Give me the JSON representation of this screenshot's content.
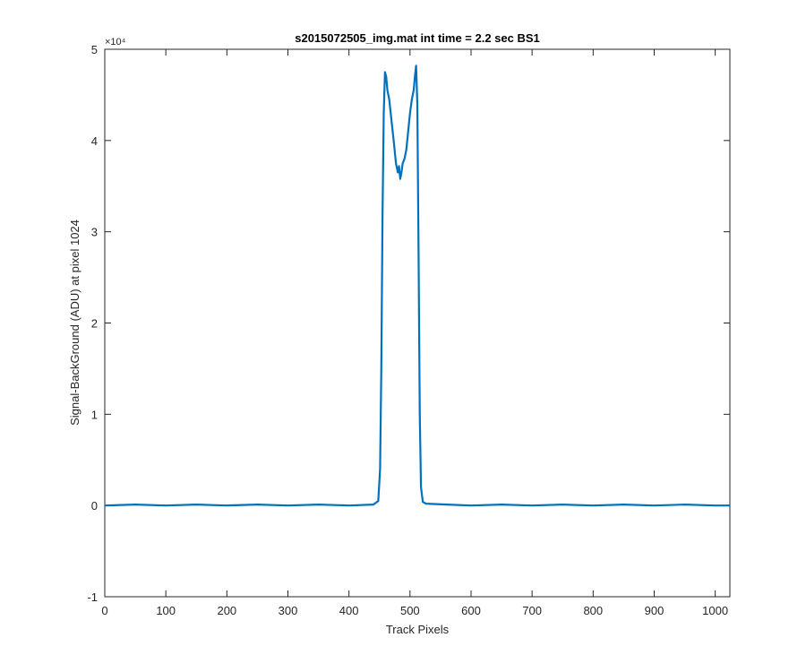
{
  "chart_data": {
    "type": "line",
    "title": "s2015072505_img.mat int time = 2.2 sec   BS1",
    "x_label": "Track Pixels",
    "y_label": "Signal-BackGround (ADU) at pixel 1024",
    "y_multiplier": "×10⁴",
    "xlim": [
      0,
      1024
    ],
    "xticks": [
      0,
      100,
      200,
      300,
      400,
      500,
      600,
      700,
      800,
      900,
      1000
    ],
    "ylim": [
      -1,
      5
    ],
    "yticks": [
      -1,
      0,
      1,
      2,
      3,
      4,
      5
    ],
    "series": [
      {
        "color": "#0072bd",
        "x": [
          0,
          50,
          100,
          150,
          200,
          250,
          300,
          350,
          400,
          440,
          448,
          451,
          453,
          455,
          457,
          459,
          461,
          463,
          466,
          470,
          474,
          477,
          480,
          482,
          484,
          486,
          488,
          491,
          494,
          497,
          500,
          503,
          506,
          508,
          510,
          512,
          514,
          516,
          518,
          521,
          526,
          560,
          600,
          650,
          700,
          750,
          800,
          850,
          900,
          950,
          1000,
          1024
        ],
        "values": [
          0.0,
          0.01,
          0.0,
          0.01,
          0.0,
          0.01,
          0.0,
          0.01,
          0.0,
          0.01,
          0.05,
          0.4,
          1.5,
          3.2,
          4.3,
          4.75,
          4.7,
          4.55,
          4.45,
          4.2,
          3.95,
          3.75,
          3.65,
          3.72,
          3.58,
          3.65,
          3.75,
          3.8,
          3.9,
          4.1,
          4.3,
          4.45,
          4.55,
          4.7,
          4.82,
          4.4,
          2.8,
          1.0,
          0.2,
          0.04,
          0.02,
          0.01,
          0.0,
          0.01,
          0.0,
          0.01,
          0.0,
          0.01,
          0.0,
          0.01,
          0.0,
          0.0
        ]
      }
    ]
  }
}
